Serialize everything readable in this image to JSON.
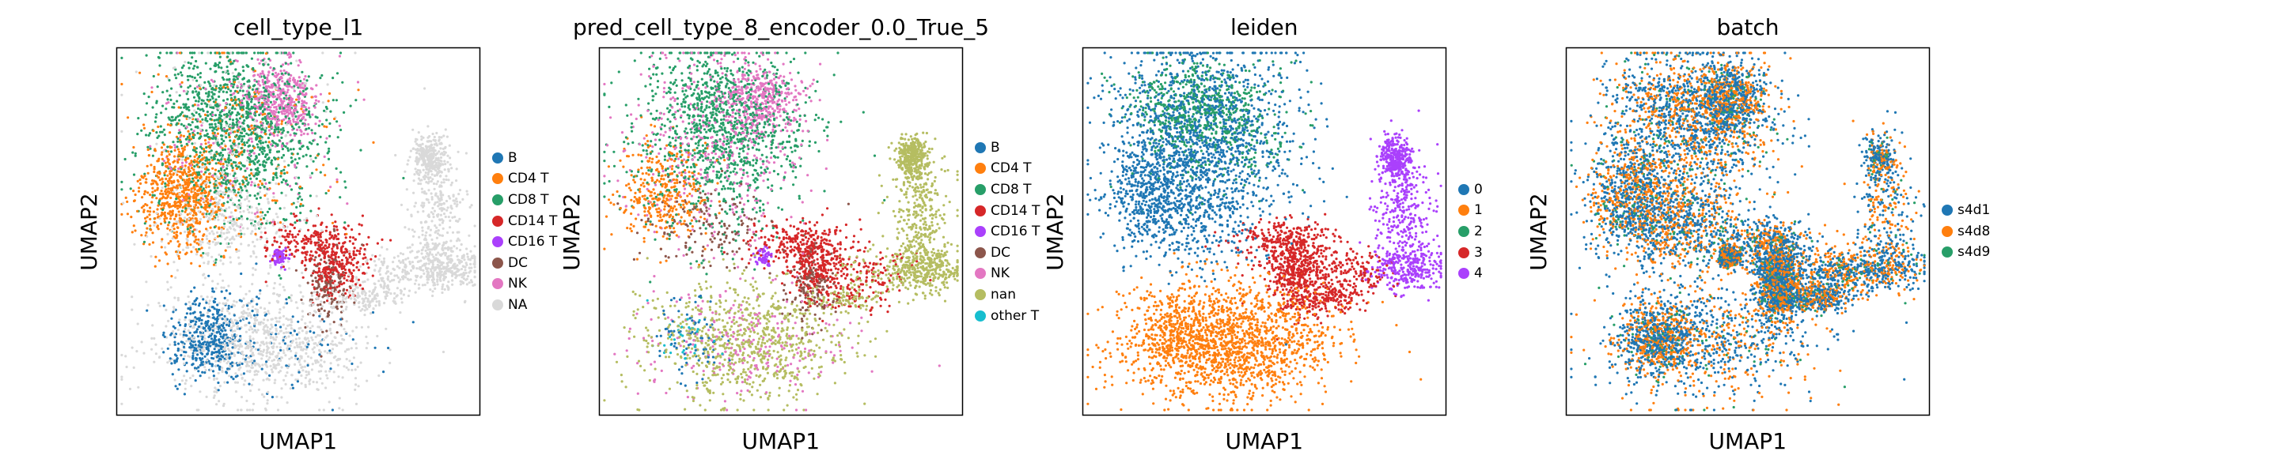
{
  "chart_data": [
    {
      "type": "scatter",
      "title": "cell_type_l1",
      "xlabel": "UMAP1",
      "ylabel": "UMAP2",
      "grid": false,
      "legend_placement": "right",
      "legend": [
        "B",
        "CD4 T",
        "CD8 T",
        "CD14 T",
        "CD16 T",
        "DC",
        "NK",
        "NA"
      ],
      "colors": [
        "#1f77b4",
        "#ff7f0e",
        "#279e68",
        "#d62728",
        "#aa40fc",
        "#8c564b",
        "#e377c2",
        "#d9d9d9"
      ]
    },
    {
      "type": "scatter",
      "title": "pred_cell_type_8_encoder_0.0_True_5",
      "xlabel": "UMAP1",
      "ylabel": "UMAP2",
      "grid": false,
      "legend_placement": "right",
      "legend": [
        "B",
        "CD4 T",
        "CD8 T",
        "CD14 T",
        "CD16 T",
        "DC",
        "NK",
        "nan",
        "other T"
      ],
      "colors": [
        "#1f77b4",
        "#ff7f0e",
        "#279e68",
        "#d62728",
        "#aa40fc",
        "#8c564b",
        "#e377c2",
        "#b5bd61",
        "#17becf"
      ]
    },
    {
      "type": "scatter",
      "title": "leiden",
      "xlabel": "UMAP1",
      "ylabel": "UMAP2",
      "grid": false,
      "legend_placement": "right",
      "legend": [
        "0",
        "1",
        "2",
        "3",
        "4"
      ],
      "colors": [
        "#1f77b4",
        "#ff7f0e",
        "#279e68",
        "#d62728",
        "#aa40fc"
      ]
    },
    {
      "type": "scatter",
      "title": "batch",
      "xlabel": "UMAP1",
      "ylabel": "UMAP2",
      "grid": false,
      "legend_placement": "right",
      "legend": [
        "s4d1",
        "s4d8",
        "s4d9"
      ],
      "colors": [
        "#1f77b4",
        "#ff7f0e",
        "#279e68"
      ]
    }
  ]
}
